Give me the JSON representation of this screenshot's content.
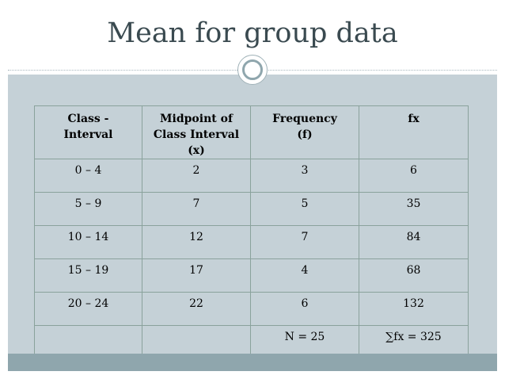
{
  "title": "Mean for group data",
  "table": {
    "headers": [
      {
        "lines": [
          "Class -",
          "Interval"
        ]
      },
      {
        "lines": [
          "Midpoint  of",
          "Class Interval",
          "(x)"
        ]
      },
      {
        "lines": [
          "Frequency",
          "(f)"
        ]
      },
      {
        "lines": [
          "fx"
        ]
      }
    ],
    "rows": [
      [
        "0 – 4",
        "2",
        "3",
        "6"
      ],
      [
        "5 – 9",
        "7",
        "5",
        "35"
      ],
      [
        "10 – 14",
        "12",
        "7",
        "84"
      ],
      [
        "15 – 19",
        "17",
        "4",
        "68"
      ],
      [
        "20 – 24",
        "22",
        "6",
        "132"
      ],
      [
        "",
        "",
        "N = 25",
        "∑fx = 325"
      ]
    ]
  }
}
